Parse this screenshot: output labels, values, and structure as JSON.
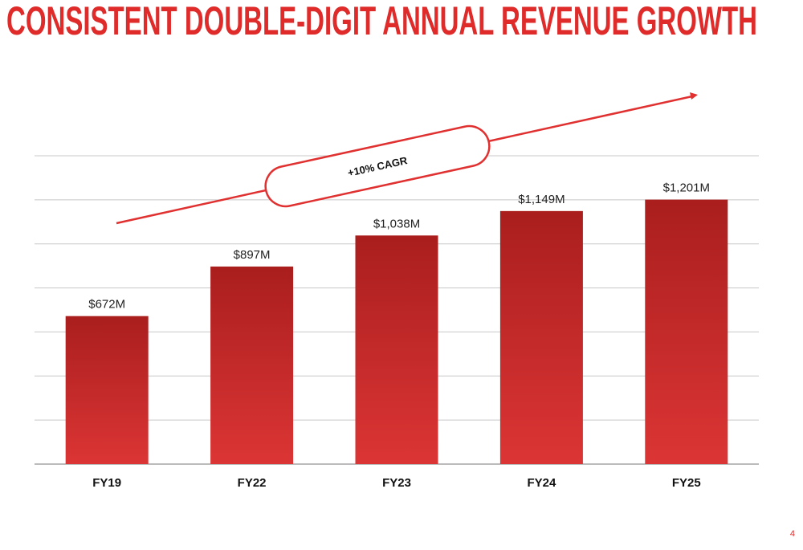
{
  "title": "CONSISTENT DOUBLE-DIGIT ANNUAL REVENUE GROWTH",
  "page_number": "4",
  "colors": {
    "title": "#e02b2b",
    "bar_top": "#aa1e1e",
    "bar_bottom": "#dc3535",
    "arrow": "#e03030",
    "grid": "#c8c8c8"
  },
  "chart_data": {
    "type": "bar",
    "title": "",
    "xlabel": "",
    "ylabel": "",
    "categories": [
      "FY19",
      "FY22",
      "FY23",
      "FY24",
      "FY25"
    ],
    "values": [
      672,
      897,
      1038,
      1149,
      1201
    ],
    "data_labels": [
      "$672M",
      "$897M",
      "$1,038M",
      "$1,149M",
      "$1,201M"
    ],
    "unit": "$M",
    "ylim": [
      0,
      1400
    ],
    "grid": true,
    "grid_step": 200,
    "y_tick_labels_shown": false,
    "annotation": {
      "label": "+10% CAGR",
      "shape": "upward arrow with rounded callout"
    }
  }
}
